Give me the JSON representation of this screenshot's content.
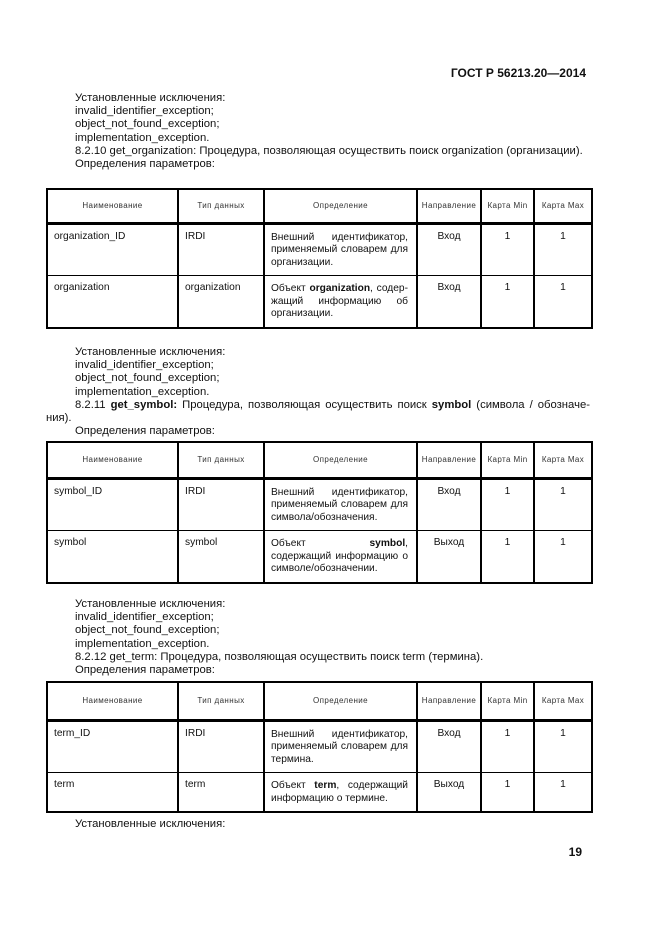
{
  "header": {
    "doc_id": "ГОСТ Р 56213.20—2014"
  },
  "page_number": "19",
  "table_columns": [
    "Наименование",
    "Тип данных",
    "Определение",
    "Направление",
    "Карта Min",
    "Карта Max"
  ],
  "sections": [
    {
      "paragraphs": [
        [
          {
            "t": "Установленные исключения:"
          }
        ],
        [
          {
            "t": "invalid_identifier_exception;"
          }
        ],
        [
          {
            "t": "object_not_found_exception;"
          }
        ],
        [
          {
            "t": "implementation_exception."
          }
        ],
        [
          {
            "t": "8.2.10 get_organization: Процедура, позволяющая осуществить поиск organization (организации)."
          }
        ],
        [
          {
            "t": "Определения параметров:"
          }
        ]
      ],
      "rows": [
        {
          "name": "organization_ID",
          "type": "IRDI",
          "definition": [
            {
              "t": "Внешний идентификатор, применяемый словарем для организации."
            }
          ],
          "direction": "Вход",
          "min": "1",
          "max": "1"
        },
        {
          "name": "organization",
          "type": "organization",
          "definition": [
            {
              "t": "Объект "
            },
            {
              "t": "organization",
              "b": true
            },
            {
              "t": ", содер­жащий информацию об орга­низации."
            }
          ],
          "direction": "Вход",
          "min": "1",
          "max": "1"
        }
      ]
    },
    {
      "paragraphs": [
        [
          {
            "t": "Установленные исключения:"
          }
        ],
        [
          {
            "t": "invalid_identifier_exception;"
          }
        ],
        [
          {
            "t": "object_not_found_exception;"
          }
        ],
        [
          {
            "t": "implementation_exception."
          }
        ],
        [
          {
            "t": "8.2.11 "
          },
          {
            "t": "get_symbol:",
            "b": true
          },
          {
            "t": " Процедура, позволяющая осуществить поиск "
          },
          {
            "t": "symbol",
            "b": true
          },
          {
            "t": " (символа / обозначе­ния)."
          }
        ],
        [
          {
            "t": "Определения параметров:"
          }
        ]
      ],
      "rows": [
        {
          "name": "symbol_ID",
          "type": "IRDI",
          "definition": [
            {
              "t": "Внешний идентификатор, применяемый словарем для символа/обозначения."
            }
          ],
          "direction": "Вход",
          "min": "1",
          "max": "1"
        },
        {
          "name": "symbol",
          "type": "symbol",
          "definition": [
            {
              "t": "Объект "
            },
            {
              "t": "symbol",
              "b": true
            },
            {
              "t": ", содержащий информацию о симво­ле/обозначении."
            }
          ],
          "direction": "Выход",
          "min": "1",
          "max": "1"
        }
      ]
    },
    {
      "paragraphs": [
        [
          {
            "t": "Установленные исключения:"
          }
        ],
        [
          {
            "t": "invalid_identifier_exception;"
          }
        ],
        [
          {
            "t": "object_not_found_exception;"
          }
        ],
        [
          {
            "t": "implementation_exception."
          }
        ],
        [
          {
            "t": "8.2.12 get_term: Процедура, позволяющая осуществить поиск term (термина)."
          }
        ],
        [
          {
            "t": "Определения параметров:"
          }
        ]
      ],
      "rows": [
        {
          "name": "term_ID",
          "type": "IRDI",
          "definition": [
            {
              "t": "Внешний идентификатор, применяемый словарем для термина."
            }
          ],
          "direction": "Вход",
          "min": "1",
          "max": "1"
        },
        {
          "name": "term",
          "type": "term",
          "definition": [
            {
              "t": "Объект "
            },
            {
              "t": "term",
              "b": true
            },
            {
              "t": ", содержащий информацию о термине."
            }
          ],
          "direction": "Выход",
          "min": "1",
          "max": "1"
        }
      ]
    }
  ],
  "footer_text": "Установленные исключения:"
}
